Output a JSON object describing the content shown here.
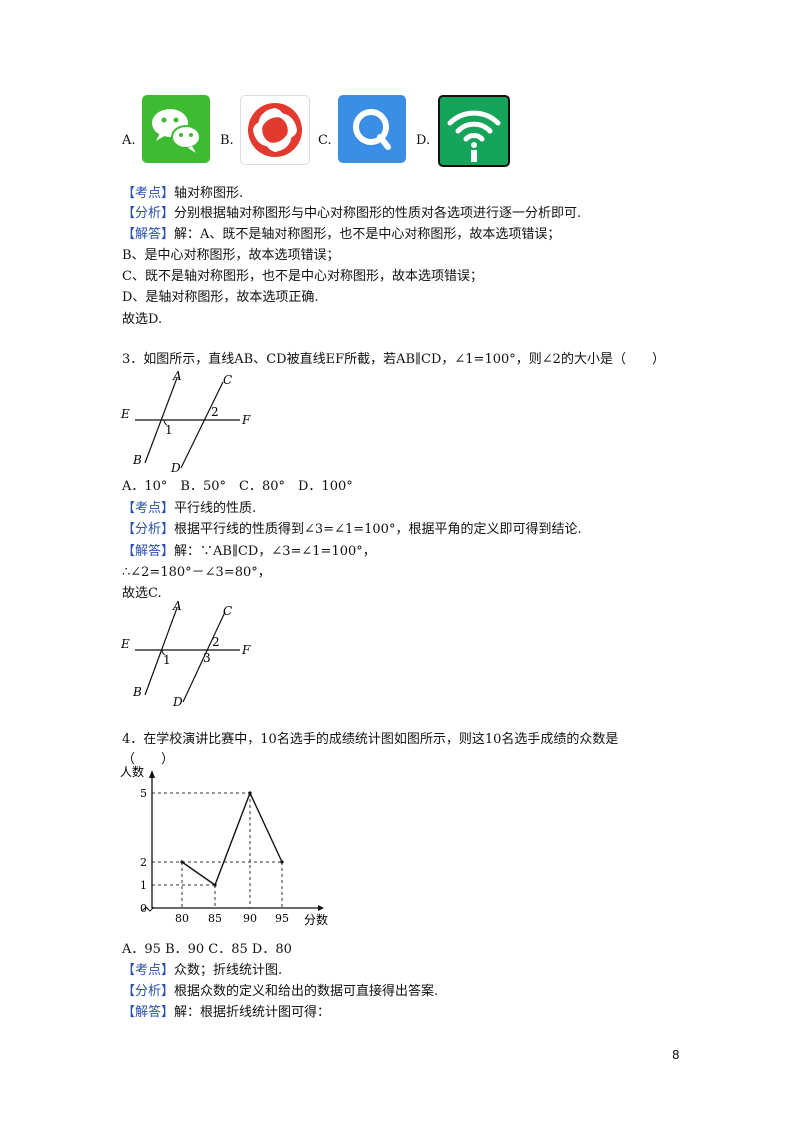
{
  "q2": {
    "options": [
      "A.",
      "B.",
      "C.",
      "D."
    ],
    "icons": [
      "wechat-icon",
      "phoenix-swirl-icon",
      "search-q-icon",
      "wifi-signal-icon"
    ],
    "kaodian_tag": "【考点】",
    "kaodian": "轴对称图形.",
    "fenxi_tag": "【分析】",
    "fenxi": "分别根据轴对称图形与中心对称图形的性质对各选项进行逐一分析即可.",
    "jieda_tag": "【解答】",
    "jieda": "解：A、既不是轴对称图形，也不是中心对称图形，故本选项错误；",
    "lines": [
      "B、是中心对称图形，故本选项错误；",
      "C、既不是轴对称图形，也不是中心对称图形，故本选项错误；",
      "D、是轴对称图形，故本选项正确.",
      "故选D."
    ]
  },
  "q3": {
    "question": "3．如图所示，直线AB、CD被直线EF所截，若AB∥CD，∠1=100°，则∠2的大小是（　　）",
    "figure1_labels": {
      "A": "A",
      "B": "B",
      "C": "C",
      "D": "D",
      "E": "E",
      "F": "F",
      "one": "1",
      "two": "2"
    },
    "options": "A．10°　B．50°　C．80°　D．100°",
    "kaodian_tag": "【考点】",
    "kaodian": "平行线的性质.",
    "fenxi_tag": "【分析】",
    "fenxi": "根据平行线的性质得到∠3=∠1=100°，根据平角的定义即可得到结论.",
    "jieda_tag": "【解答】",
    "jieda": "解：∵AB∥CD，∠3=∠1=100°，",
    "lines": [
      "∴∠2=180°－∠3=80°，",
      "故选C."
    ],
    "figure2_labels": {
      "A": "A",
      "B": "B",
      "C": "C",
      "D": "D",
      "E": "E",
      "F": "F",
      "one": "1",
      "two": "2",
      "three": "3"
    }
  },
  "q4": {
    "question": "4．在学校演讲比赛中，10名选手的成绩统计图如图所示，则这10名选手成绩的众数是",
    "paren": "（　　）",
    "options": "A．95  B．90  C．85  D．80",
    "kaodian_tag": "【考点】",
    "kaodian": "众数；折线统计图.",
    "fenxi_tag": "【分析】",
    "fenxi": "根据众数的定义和给出的数据可直接得出答案.",
    "jieda_tag": "【解答】",
    "jieda": "解：根据折线统计图可得："
  },
  "chart_data": {
    "type": "line",
    "ylabel": "人数",
    "xlabel": "分数",
    "x": [
      80,
      85,
      90,
      95
    ],
    "values": [
      2,
      1,
      5,
      2
    ],
    "xticks": [
      "80",
      "85",
      "90",
      "95"
    ],
    "yticks": [
      "0",
      "1",
      "2",
      "5"
    ],
    "ylim": [
      0,
      5.5
    ]
  },
  "page_number": "8"
}
